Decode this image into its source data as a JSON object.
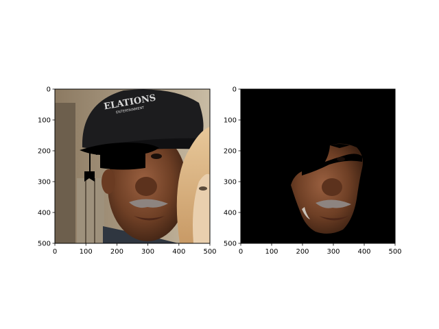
{
  "chart_data": [
    {
      "type": "image",
      "title": "",
      "xlabel": "",
      "ylabel": "",
      "xlim": [
        0,
        500
      ],
      "ylim": [
        500,
        0
      ],
      "xticks": [
        0,
        100,
        200,
        300,
        400,
        500
      ],
      "yticks": [
        0,
        100,
        200,
        300,
        400,
        500
      ],
      "xtick_labels": [
        "0",
        "100",
        "200",
        "300",
        "400",
        "500"
      ],
      "ytick_labels": [
        "0",
        "100",
        "200",
        "300",
        "400",
        "500"
      ],
      "grid": false,
      "content": "photo of a man's face wearing a black cap, with a black graduation-cap silhouette overlaid across the eyes"
    },
    {
      "type": "image",
      "title": "",
      "xlabel": "",
      "ylabel": "",
      "xlim": [
        0,
        500
      ],
      "ylim": [
        500,
        0
      ],
      "xticks": [
        0,
        100,
        200,
        300,
        400,
        500
      ],
      "yticks": [
        0,
        100,
        200,
        300,
        400,
        500
      ],
      "xtick_labels": [
        "0",
        "100",
        "200",
        "300",
        "400",
        "500"
      ],
      "ytick_labels": [
        "0",
        "100",
        "200",
        "300",
        "400",
        "500"
      ],
      "grid": false,
      "content": "segmented face region on a black background"
    }
  ],
  "colors": {
    "background": "#ffffff",
    "mask_background": "#000000",
    "skin": "#7a4a2e",
    "overlay": "#000000"
  },
  "cap_logo_text": "ELATIONS ENTERTAINMENT"
}
